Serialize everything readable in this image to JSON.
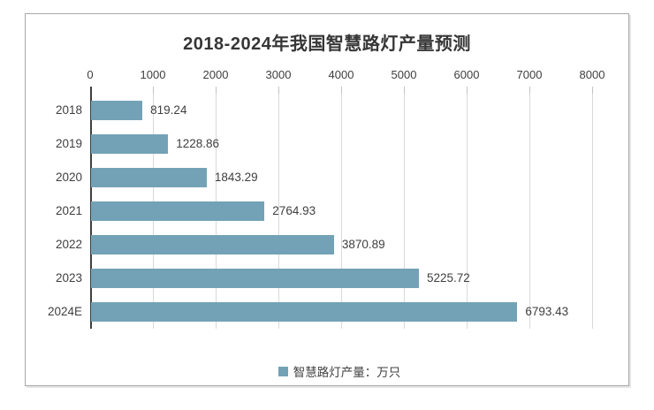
{
  "chart": {
    "title": "2018-2024年我国智慧路灯产量预测",
    "legend_label": "智慧路灯产量：万只",
    "bar_color": "#73a2b6",
    "gridline_color": "#d9d9d9",
    "axis_line_color": "#3f3f3f",
    "text_color": "#3f3f3f",
    "frame_border_color": "#a8a8a8"
  },
  "chart_data": {
    "type": "bar",
    "orientation": "horizontal",
    "title": "2018-2024年我国智慧路灯产量预测",
    "categories": [
      "2018",
      "2019",
      "2020",
      "2021",
      "2022",
      "2023",
      "2024E"
    ],
    "series": [
      {
        "name": "智慧路灯产量：万只",
        "values": [
          819.24,
          1228.86,
          1843.29,
          2764.93,
          3870.89,
          5225.72,
          6793.43
        ],
        "value_labels": [
          "819.24",
          "1228.86",
          "1843.29",
          "2764.93",
          "3870.89",
          "5225.72",
          "6793.43"
        ]
      }
    ],
    "xlabel": "",
    "ylabel": "",
    "xlim": [
      0,
      8000
    ],
    "x_ticks": [
      0,
      1000,
      2000,
      3000,
      4000,
      5000,
      6000,
      7000,
      8000
    ],
    "grid": true,
    "data_labels": true,
    "legend_entries": [
      "智慧路灯产量：万只"
    ],
    "legend_position": "bottom"
  }
}
